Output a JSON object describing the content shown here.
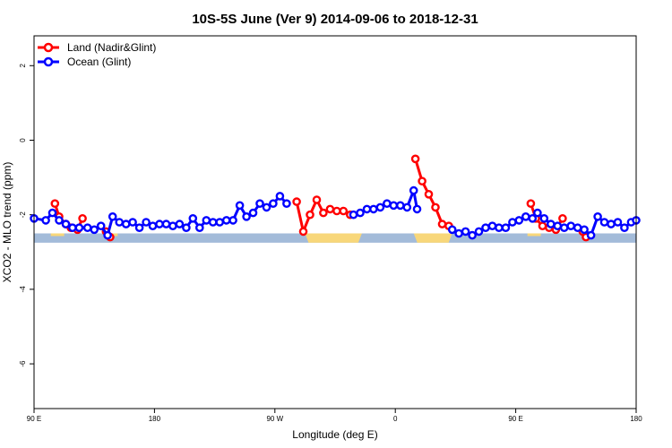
{
  "chart_data": {
    "type": "line",
    "title": "10S-5S June (Ver 9)   2014-09-06 to 2018-12-31",
    "xlabel": "Longitude (deg E)",
    "ylabel": "XCO2 - MLO trend (ppm)",
    "xlim": [
      90,
      450
    ],
    "ylim": [
      -7.2,
      2.8
    ],
    "x_ticks": [
      {
        "value": 90,
        "label": "90 E"
      },
      {
        "value": 162,
        "label": "180"
      },
      {
        "value": 234,
        "label": "90 W"
      },
      {
        "value": 306,
        "label": "0"
      },
      {
        "value": 378,
        "label": "90 E"
      },
      {
        "value": 450,
        "label": "180"
      }
    ],
    "y_ticks": [
      {
        "value": 2,
        "label": "2"
      },
      {
        "value": 0,
        "label": "0"
      },
      {
        "value": -2,
        "label": "-2"
      },
      {
        "value": -4,
        "label": "-4"
      },
      {
        "value": -6,
        "label": "-6"
      }
    ],
    "legend_position": "top-left",
    "grid": false,
    "land_band": {
      "y_top": -2.5,
      "y_bottom": -2.75,
      "ocean_color": "#a3bbd9",
      "land_color": "#f8d77a"
    },
    "series": [
      {
        "name": "Land (Nadir&Glint)",
        "color": "#ff0000",
        "segments": [
          [
            [
              102.5,
              -1.7
            ],
            [
              105,
              -2.05
            ],
            [
              109,
              -2.25
            ],
            [
              112,
              -2.35
            ],
            [
              116,
              -2.4
            ],
            [
              119,
              -2.1
            ]
          ],
          [
            [
              133,
              -2.45
            ],
            [
              135.5,
              -2.6
            ]
          ],
          [
            [
              247,
              -1.65
            ],
            [
              251,
              -2.45
            ],
            [
              255,
              -2.0
            ],
            [
              259,
              -1.6
            ],
            [
              263,
              -1.95
            ],
            [
              267,
              -1.85
            ],
            [
              271,
              -1.9
            ],
            [
              275,
              -1.9
            ],
            [
              279,
              -2.0
            ]
          ],
          [
            [
              318,
              -0.5
            ],
            [
              322,
              -1.1
            ],
            [
              326,
              -1.45
            ],
            [
              330,
              -1.8
            ],
            [
              334,
              -2.25
            ],
            [
              338,
              -2.3
            ]
          ],
          [
            [
              387,
              -1.7
            ],
            [
              390,
              -2.1
            ],
            [
              394,
              -2.3
            ],
            [
              398,
              -2.35
            ],
            [
              402,
              -2.4
            ],
            [
              406,
              -2.1
            ]
          ],
          [
            [
              418,
              -2.45
            ],
            [
              420,
              -2.6
            ]
          ]
        ]
      },
      {
        "name": "Ocean (Glint)",
        "color": "#0000ff",
        "segments": [
          [
            [
              90,
              -2.1
            ],
            [
              97,
              -2.15
            ],
            [
              101,
              -1.95
            ],
            [
              105,
              -2.15
            ],
            [
              109,
              -2.25
            ],
            [
              113,
              -2.35
            ],
            [
              117,
              -2.35
            ],
            [
              122,
              -2.35
            ],
            [
              126,
              -2.4
            ],
            [
              130,
              -2.3
            ],
            [
              134,
              -2.55
            ],
            [
              137,
              -2.05
            ],
            [
              141,
              -2.2
            ],
            [
              145,
              -2.25
            ],
            [
              149,
              -2.2
            ],
            [
              153,
              -2.35
            ],
            [
              157,
              -2.2
            ],
            [
              161,
              -2.3
            ],
            [
              165,
              -2.25
            ],
            [
              169,
              -2.25
            ],
            [
              173,
              -2.3
            ],
            [
              177,
              -2.25
            ],
            [
              181,
              -2.35
            ],
            [
              185,
              -2.1
            ],
            [
              189,
              -2.35
            ],
            [
              193,
              -2.15
            ],
            [
              197,
              -2.2
            ],
            [
              201,
              -2.2
            ],
            [
              205,
              -2.15
            ],
            [
              209,
              -2.15
            ],
            [
              213,
              -1.75
            ],
            [
              217,
              -2.05
            ],
            [
              221,
              -1.95
            ],
            [
              225,
              -1.7
            ],
            [
              229,
              -1.8
            ],
            [
              233,
              -1.7
            ],
            [
              237,
              -1.5
            ],
            [
              241,
              -1.7
            ]
          ],
          [
            [
              281,
              -2.0
            ],
            [
              285,
              -1.95
            ],
            [
              289,
              -1.85
            ],
            [
              293,
              -1.85
            ],
            [
              297,
              -1.8
            ],
            [
              301,
              -1.7
            ],
            [
              305,
              -1.75
            ],
            [
              309,
              -1.75
            ],
            [
              313,
              -1.8
            ],
            [
              317,
              -1.35
            ],
            [
              319,
              -1.85
            ]
          ],
          [
            [
              340,
              -2.4
            ],
            [
              344,
              -2.5
            ],
            [
              348,
              -2.45
            ],
            [
              352,
              -2.55
            ],
            [
              356,
              -2.45
            ],
            [
              360,
              -2.35
            ],
            [
              364,
              -2.3
            ],
            [
              368,
              -2.35
            ],
            [
              372,
              -2.35
            ],
            [
              376,
              -2.2
            ],
            [
              380,
              -2.15
            ],
            [
              384,
              -2.05
            ],
            [
              388,
              -2.1
            ],
            [
              391,
              -1.95
            ],
            [
              395,
              -2.1
            ],
            [
              399,
              -2.25
            ],
            [
              403,
              -2.3
            ],
            [
              407,
              -2.35
            ],
            [
              411,
              -2.3
            ],
            [
              415,
              -2.35
            ],
            [
              419,
              -2.4
            ],
            [
              423,
              -2.55
            ],
            [
              427,
              -2.05
            ],
            [
              431,
              -2.2
            ],
            [
              435,
              -2.25
            ],
            [
              439,
              -2.2
            ],
            [
              443,
              -2.35
            ],
            [
              447,
              -2.2
            ],
            [
              450,
              -2.15
            ]
          ]
        ]
      }
    ]
  }
}
